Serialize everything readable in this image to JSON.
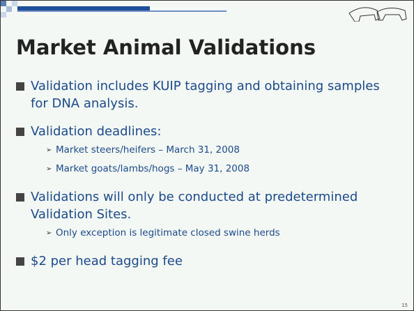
{
  "slide": {
    "title": "Market Animal Validations",
    "bullets": [
      {
        "text": "Validation includes KUIP tagging and obtaining samples for DNA analysis.",
        "sub": []
      },
      {
        "text": "Validation deadlines:",
        "sub": [
          "Market steers/heifers – March 31, 2008",
          "Market goats/lambs/hogs – May 31, 2008"
        ]
      },
      {
        "text": "Validations will only be conducted at predetermined Validation Sites.",
        "sub": [
          "Only exception is legitimate closed swine herds"
        ]
      },
      {
        "text": "$2 per head tagging fee",
        "sub": []
      }
    ],
    "page_number": "15"
  }
}
